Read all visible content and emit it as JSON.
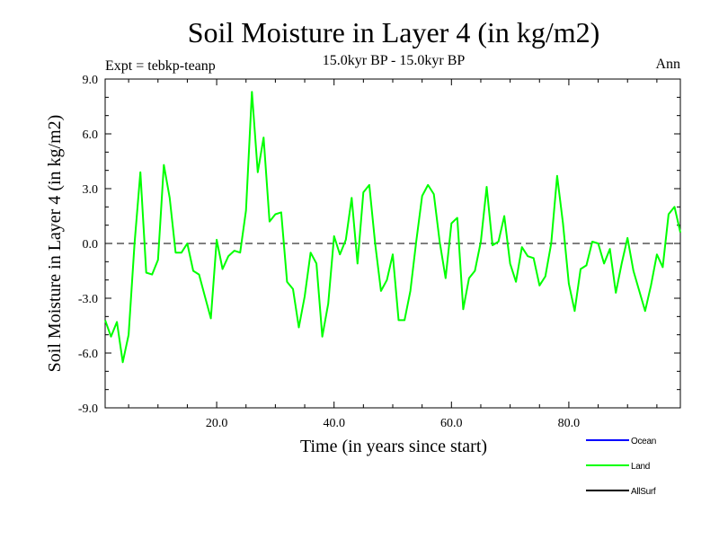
{
  "chart_data": {
    "type": "line",
    "title": "Soil Moisture in Layer 4 (in kg/m2)",
    "experiment": "Expt = tebkp-teanp",
    "period": "15.0kyr BP - 15.0kyr BP",
    "season": "Ann",
    "xlabel": "Time (in years since start)",
    "ylabel": "Soil Moisture in Layer 4 (in kg/m2)",
    "xlim": [
      1,
      99
    ],
    "ylim": [
      -9.0,
      9.0
    ],
    "xticks": [
      20,
      40,
      60,
      80
    ],
    "xtick_labels": [
      "20.0",
      "40.0",
      "60.0",
      "80.0"
    ],
    "yticks": [
      -9,
      -6,
      -3,
      0,
      3,
      6,
      9
    ],
    "ytick_labels": [
      "-9.0",
      "-6.0",
      "-3.0",
      "0.0",
      "3.0",
      "6.0",
      "9.0"
    ],
    "zero_line": true,
    "series": [
      {
        "name": "Ocean",
        "color": "#0000ff",
        "values": []
      },
      {
        "name": "Land",
        "color": "#00ff00",
        "x": [
          1,
          2,
          3,
          4,
          5,
          6,
          7,
          8,
          9,
          10,
          11,
          12,
          13,
          14,
          15,
          16,
          17,
          18,
          19,
          20,
          21,
          22,
          23,
          24,
          25,
          26,
          27,
          28,
          29,
          30,
          31,
          32,
          33,
          34,
          35,
          36,
          37,
          38,
          39,
          40,
          41,
          42,
          43,
          44,
          45,
          46,
          47,
          48,
          49,
          50,
          51,
          52,
          53,
          54,
          55,
          56,
          57,
          58,
          59,
          60,
          61,
          62,
          63,
          64,
          65,
          66,
          67,
          68,
          69,
          70,
          71,
          72,
          73,
          74,
          75,
          76,
          77,
          78,
          79,
          80,
          81,
          82,
          83,
          84,
          85,
          86,
          87,
          88,
          89,
          90,
          91,
          92,
          93,
          94,
          95,
          96,
          97,
          98,
          99
        ],
        "values": [
          -4.2,
          -5.1,
          -4.3,
          -6.5,
          -5.0,
          0.0,
          3.9,
          -1.6,
          -1.7,
          -0.9,
          4.3,
          2.5,
          -0.5,
          -0.5,
          0.0,
          -1.5,
          -1.7,
          -2.9,
          -4.1,
          0.2,
          -1.4,
          -0.7,
          -0.4,
          -0.5,
          1.8,
          8.3,
          3.9,
          5.8,
          1.2,
          1.6,
          1.7,
          -2.1,
          -2.5,
          -4.6,
          -2.9,
          -0.5,
          -1.1,
          -5.1,
          -3.3,
          0.4,
          -0.6,
          0.2,
          2.5,
          -1.1,
          2.8,
          3.2,
          0.0,
          -2.6,
          -2.0,
          -0.6,
          -4.2,
          -4.2,
          -2.6,
          0.1,
          2.6,
          3.2,
          2.7,
          0.1,
          -1.9,
          1.1,
          1.4,
          -3.6,
          -1.9,
          -1.5,
          0.1,
          3.1,
          -0.1,
          0.1,
          1.5,
          -1.1,
          -2.1,
          -0.2,
          -0.7,
          -0.8,
          -2.3,
          -1.8,
          0.0,
          3.7,
          1.1,
          -2.2,
          -3.7,
          -1.4,
          -1.2,
          0.1,
          0.0,
          -1.1,
          -0.3,
          -2.7,
          -1.1,
          0.3,
          -1.5,
          -2.6,
          -3.7,
          -2.3,
          -0.6,
          -1.3,
          1.6,
          2.0,
          0.6
        ]
      },
      {
        "name": "AllSurf",
        "color": "#000000",
        "values": []
      }
    ]
  }
}
